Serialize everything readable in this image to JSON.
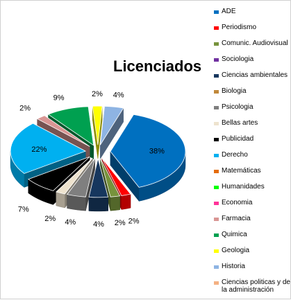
{
  "chart_data": {
    "type": "pie",
    "title": "Licenciados",
    "legend_position": "right",
    "categories": [
      "ADE",
      "Periodismo",
      "Comunic. Audiovisual",
      "Sociologia",
      "Ciencias ambientales",
      "Biologia",
      "Psicologia",
      "Bellas artes",
      "Publicidad",
      "Derecho",
      "Matemáticas",
      "Humanidades",
      "Economia",
      "Farmacia",
      "Quimica",
      "Geologia",
      "Historia",
      "Ciencias politicas y de la administración"
    ],
    "values": [
      38,
      2,
      2,
      0,
      4,
      0,
      4,
      2,
      7,
      22,
      0,
      0,
      0,
      2,
      9,
      2,
      4,
      0
    ],
    "data_labels": [
      "38%",
      "2%",
      "2%",
      "",
      "4%",
      "",
      "4%",
      "2%",
      "7%",
      "22%",
      "",
      "",
      "",
      "2%",
      "9%",
      "2%",
      "4%",
      ""
    ],
    "colors": [
      "#0070C0",
      "#FF0000",
      "#77933C",
      "#7030A0",
      "#17375E",
      "#C0883A",
      "#7F7F7F",
      "#EEE3CE",
      "#000000",
      "#00B0F0",
      "#E46C0A",
      "#00FF00",
      "#FF3399",
      "#D99694",
      "#00A050",
      "#FFFF00",
      "#8EB4E3",
      "#F4B183"
    ]
  }
}
